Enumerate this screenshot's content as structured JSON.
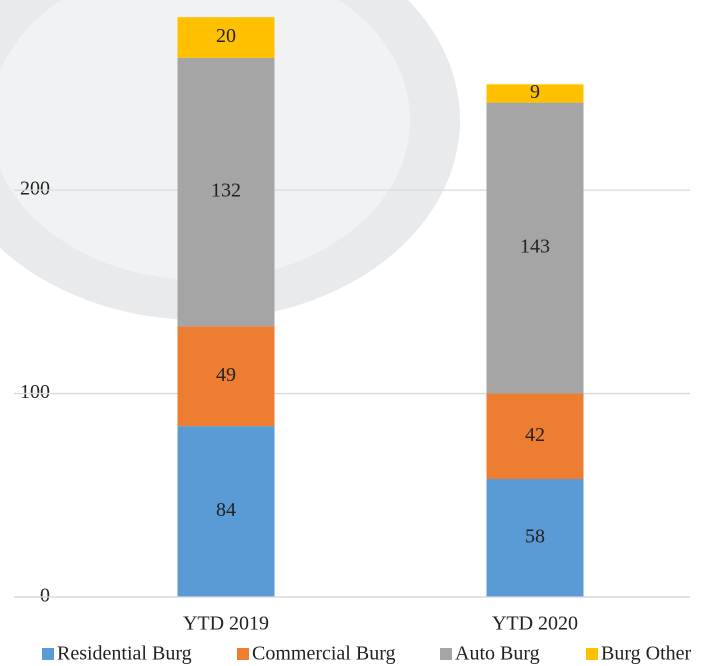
{
  "chart_data": {
    "type": "bar",
    "stacked": true,
    "categories": [
      "YTD 2019",
      "YTD 2020"
    ],
    "series": [
      {
        "name": "Residential Burg",
        "color": "#5b9bd5",
        "values": [
          84,
          58
        ]
      },
      {
        "name": "Commercial Burg",
        "color": "#ed7d31",
        "values": [
          49,
          42
        ]
      },
      {
        "name": "Auto Burg",
        "color": "#a5a5a5",
        "values": [
          132,
          143
        ]
      },
      {
        "name": "Burg Other",
        "color": "#ffc000",
        "values": [
          20,
          9
        ]
      }
    ],
    "ylim": [
      0,
      290
    ],
    "yticks": [
      0,
      100,
      200
    ],
    "grid": true,
    "legend": "bottom"
  }
}
